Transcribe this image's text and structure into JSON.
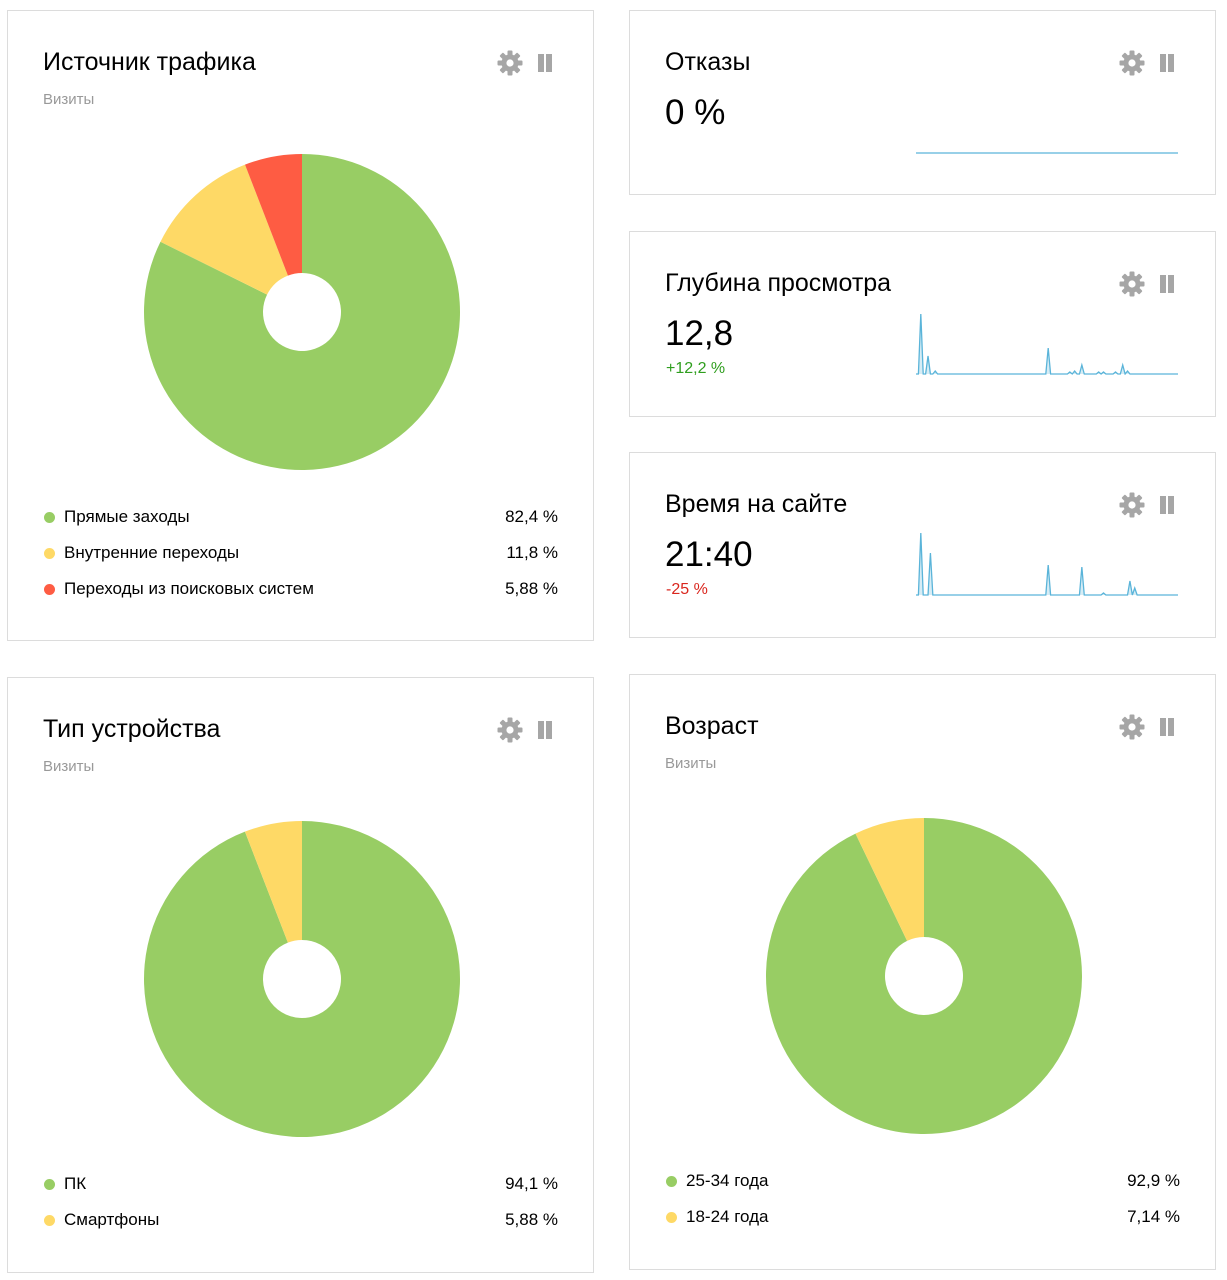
{
  "colors": {
    "green": "#98cd64",
    "yellow": "#fed966",
    "red": "#fe5c43",
    "spark": "#5ab4d9",
    "positive": "#2f9e1e",
    "negative": "#d9261e",
    "icon": "#a6a6a6"
  },
  "icons": {
    "settings": "gear-icon",
    "drag": "drag-handle-icon"
  },
  "traffic": {
    "title": "Источник трафика",
    "subtitle": "Визиты",
    "chart_data": {
      "type": "pie",
      "title": "Источник трафика",
      "subtitle": "Визиты",
      "categories": [
        "Прямые заходы",
        "Внутренние переходы",
        "Переходы из поисковых систем"
      ],
      "values": [
        82.4,
        11.8,
        5.88
      ],
      "colors": [
        "#98cd64",
        "#fed966",
        "#fe5c43"
      ],
      "legend": "bottom"
    },
    "legend": [
      {
        "label": "Прямые заходы",
        "value": "82,4 %",
        "color": "#98cd64"
      },
      {
        "label": "Внутренние переходы",
        "value": "11,8 %",
        "color": "#fed966"
      },
      {
        "label": "Переходы из поисковых систем",
        "value": "5,88 %",
        "color": "#fe5c43"
      }
    ]
  },
  "bounce": {
    "title": "Отказы",
    "value": "0 %",
    "chart_data": {
      "type": "line",
      "values": [
        0,
        0,
        0,
        0,
        0,
        0,
        0,
        0,
        0,
        0,
        0,
        0,
        0,
        0,
        0,
        0,
        0,
        0,
        0,
        0,
        0,
        0,
        0,
        0,
        0,
        0,
        0,
        0,
        0,
        0,
        0,
        0,
        0,
        0,
        0,
        0,
        0,
        0,
        0,
        0,
        0,
        0,
        0,
        0,
        0,
        0,
        0,
        0,
        0,
        0
      ]
    }
  },
  "depth": {
    "title": "Глубина просмотра",
    "value": "12,8",
    "delta": "+12,2 %",
    "chart_data": {
      "type": "line",
      "values": [
        0,
        0,
        60,
        0,
        0,
        18,
        0,
        0,
        3,
        0,
        0,
        0,
        0,
        0,
        0,
        0,
        0,
        0,
        0,
        0,
        0,
        0,
        0,
        0,
        0,
        0,
        0,
        0,
        0,
        0,
        0,
        0,
        0,
        0,
        0,
        0,
        0,
        0,
        0,
        0,
        0,
        0,
        0,
        0,
        0,
        0,
        0,
        0,
        0,
        0,
        0,
        0,
        0,
        0,
        0,
        26,
        0,
        0,
        0,
        0,
        0,
        0,
        0,
        0,
        2,
        0,
        3,
        0,
        0,
        9,
        0,
        0,
        0,
        0,
        0,
        0,
        2,
        0,
        2,
        0,
        0,
        0,
        0,
        2,
        0,
        0,
        9,
        0,
        3,
        0,
        0,
        0,
        0,
        0,
        0,
        0,
        0,
        0,
        0,
        0,
        0,
        0,
        0,
        0,
        0,
        0,
        0,
        0,
        0,
        0
      ]
    }
  },
  "time": {
    "title": "Время на сайте",
    "value": "21:40",
    "delta": "-25 %",
    "chart_data": {
      "type": "line",
      "values": [
        0,
        0,
        62,
        0,
        0,
        0,
        42,
        0,
        0,
        0,
        0,
        0,
        0,
        0,
        0,
        0,
        0,
        0,
        0,
        0,
        0,
        0,
        0,
        0,
        0,
        0,
        0,
        0,
        0,
        0,
        0,
        0,
        0,
        0,
        0,
        0,
        0,
        0,
        0,
        0,
        0,
        0,
        0,
        0,
        0,
        0,
        0,
        0,
        0,
        0,
        0,
        0,
        0,
        0,
        0,
        30,
        0,
        0,
        0,
        0,
        0,
        0,
        0,
        0,
        0,
        0,
        0,
        0,
        0,
        28,
        0,
        0,
        0,
        0,
        0,
        0,
        0,
        0,
        2,
        0,
        0,
        0,
        0,
        0,
        0,
        0,
        0,
        0,
        0,
        14,
        0,
        7,
        0,
        0,
        0,
        0,
        0,
        0,
        0,
        0,
        0,
        0,
        0,
        0,
        0,
        0,
        0,
        0,
        0,
        0
      ]
    }
  },
  "device": {
    "title": "Тип устройства",
    "subtitle": "Визиты",
    "chart_data": {
      "type": "pie",
      "title": "Тип устройства",
      "subtitle": "Визиты",
      "categories": [
        "ПК",
        "Смартфоны"
      ],
      "values": [
        94.1,
        5.88
      ],
      "colors": [
        "#98cd64",
        "#fed966"
      ],
      "legend": "bottom"
    },
    "legend": [
      {
        "label": "ПК",
        "value": "94,1 %",
        "color": "#98cd64"
      },
      {
        "label": "Смартфоны",
        "value": "5,88 %",
        "color": "#fed966"
      }
    ]
  },
  "age": {
    "title": "Возраст",
    "subtitle": "Визиты",
    "chart_data": {
      "type": "pie",
      "title": "Возраст",
      "subtitle": "Визиты",
      "categories": [
        "25-34 года",
        "18-24 года"
      ],
      "values": [
        92.9,
        7.14
      ],
      "colors": [
        "#98cd64",
        "#fed966"
      ],
      "legend": "bottom"
    },
    "legend": [
      {
        "label": "25-34 года",
        "value": "92,9 %",
        "color": "#98cd64"
      },
      {
        "label": "18-24 года",
        "value": "7,14 %",
        "color": "#fed966"
      }
    ]
  }
}
